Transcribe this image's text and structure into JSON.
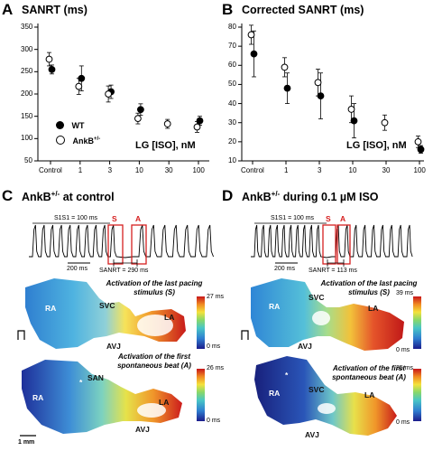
{
  "panels": {
    "A": {
      "letter": "A",
      "title": "SANRT (ms)",
      "xlabel": "LG [ISO], nM",
      "legend": [
        {
          "label": "WT",
          "filled": true
        },
        {
          "label": "AnkB",
          "sup": "+/-",
          "filled": false
        }
      ]
    },
    "B": {
      "letter": "B",
      "title": "Corrected SANRT (ms)",
      "xlabel": "LG [ISO], nM"
    },
    "C": {
      "letter": "C",
      "title_main": "AnkB",
      "title_sup": "+/-",
      "title_rest": " at control",
      "s1s1": "S1S1 = 100 ms",
      "scale_time": "200 ms",
      "sanrt": "SANRT = 290 ms",
      "marker_s": "S",
      "marker_a": "A",
      "map1": {
        "caption_1": "Activation of the last pacing",
        "caption_2": "stimulus (S)",
        "labels": {
          "ra": "RA",
          "svc": "SVC",
          "la": "LA",
          "avj": "AVJ"
        },
        "colorbar_max": "27 ms",
        "colorbar_min": "0 ms"
      },
      "map2": {
        "caption_1": "Activation of the first",
        "caption_2": "spontaneous beat (A)",
        "labels": {
          "ra": "RA",
          "san": "SAN",
          "la": "LA",
          "avj": "AVJ",
          "star": "*"
        },
        "colorbar_max": "26 ms",
        "colorbar_min": "0 ms",
        "scale": "1 mm"
      }
    },
    "D": {
      "letter": "D",
      "title_main": "AnkB",
      "title_sup": "+/-",
      "title_rest": " during 0.1 µM ISO",
      "s1s1": "S1S1 = 100 ms",
      "scale_time": "200 ms",
      "sanrt": "SANRT = 113 ms",
      "marker_s": "S",
      "marker_a": "A",
      "map1": {
        "caption_1": "Activation of the last pacing",
        "caption_2": "stimulus (S)",
        "labels": {
          "ra": "RA",
          "svc": "SVC",
          "la": "LA",
          "avj": "AVJ"
        },
        "colorbar_max": "39 ms",
        "colorbar_min": "0 ms"
      },
      "map2": {
        "caption_1": "Activation of the first",
        "caption_2": "spontaneous beat (A)",
        "labels": {
          "ra": "RA",
          "svc": "SVC",
          "la": "LA",
          "avj": "AVJ",
          "star": "*"
        },
        "colorbar_max": "35 ms",
        "colorbar_min": "0 ms"
      }
    }
  },
  "chart_data": [
    {
      "type": "scatter",
      "title": "SANRT (ms)",
      "xlabel": "LG [ISO], nM",
      "categories": [
        "Control",
        "1",
        "3",
        "10",
        "30",
        "100"
      ],
      "ylim": [
        50,
        350
      ],
      "yticks": [
        50,
        100,
        150,
        200,
        250,
        300,
        350
      ],
      "grid": false,
      "legend_position": "lower-left",
      "series": [
        {
          "name": "WT",
          "marker": "filled",
          "values": [
            255,
            235,
            205,
            165,
            null,
            140
          ],
          "errors": [
            10,
            28,
            15,
            13,
            null,
            10
          ]
        },
        {
          "name": "AnkB+/-",
          "marker": "open",
          "values": [
            278,
            217,
            200,
            145,
            133,
            126
          ],
          "errors": [
            15,
            18,
            18,
            12,
            10,
            12
          ]
        }
      ]
    },
    {
      "type": "scatter",
      "title": "Corrected SANRT (ms)",
      "xlabel": "LG [ISO], nM",
      "categories": [
        "Control",
        "1",
        "3",
        "10",
        "30",
        "100"
      ],
      "ylim": [
        10,
        80
      ],
      "yticks": [
        10,
        20,
        30,
        40,
        50,
        60,
        70,
        80
      ],
      "grid": false,
      "series": [
        {
          "name": "WT",
          "marker": "filled",
          "values": [
            66,
            48,
            44,
            31,
            null,
            16
          ],
          "errors": [
            12,
            8,
            12,
            9,
            null,
            2
          ]
        },
        {
          "name": "AnkB+/-",
          "marker": "open",
          "values": [
            76,
            59,
            51,
            37,
            30,
            20
          ],
          "errors": [
            5,
            5,
            7,
            7,
            4,
            3
          ]
        }
      ]
    }
  ],
  "colors": {
    "red": "#d62020"
  }
}
